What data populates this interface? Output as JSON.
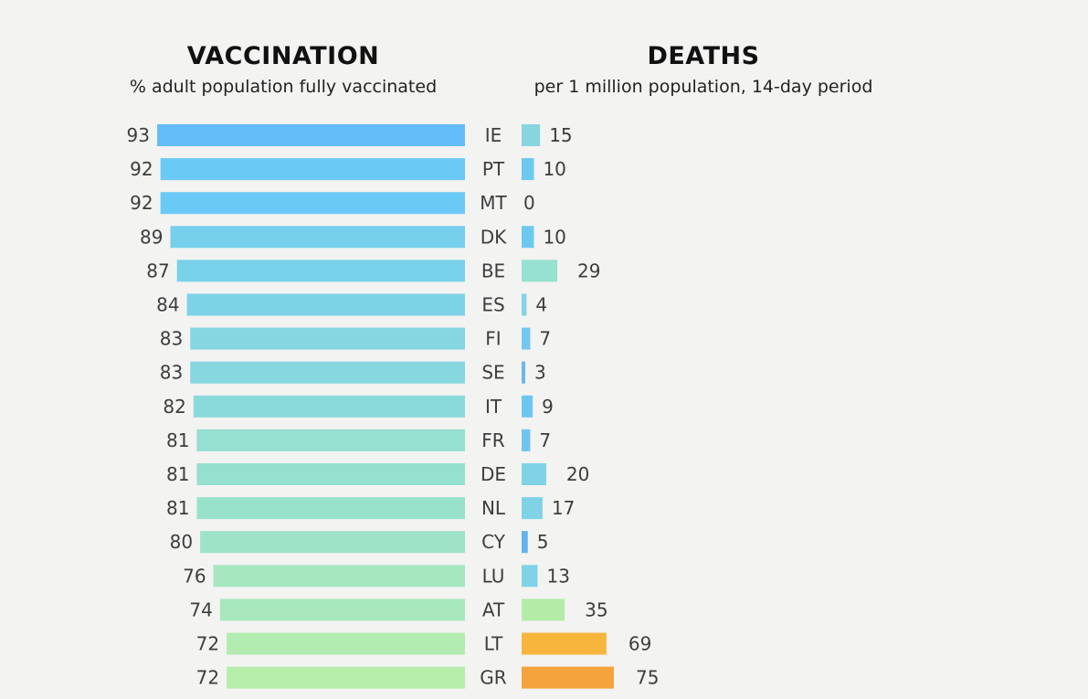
{
  "chart_data": [
    {
      "type": "bar",
      "orientation": "horizontal",
      "title": "VACCINATION",
      "subtitle": "% adult population fully vaccinated",
      "categories": [
        "IE",
        "PT",
        "MT",
        "DK",
        "BE",
        "ES",
        "FI",
        "SE",
        "IT",
        "FR",
        "DE",
        "NL",
        "CY",
        "LU",
        "AT",
        "LT",
        "GR"
      ],
      "values": [
        93,
        92,
        92,
        89,
        87,
        84,
        83,
        83,
        82,
        81,
        81,
        81,
        80,
        76,
        74,
        72,
        72
      ],
      "colors": [
        "#64bdf8",
        "#6bc9f5",
        "#6bc9f5",
        "#76cfeb",
        "#78d2ea",
        "#7dd3e6",
        "#85d6e0",
        "#86d7df",
        "#8adadb",
        "#95e0d0",
        "#95e0cf",
        "#98e2cc",
        "#9de3c8",
        "#a6e7c0",
        "#a8e8bc",
        "#b3ecb0",
        "#b6eeac"
      ],
      "xlim": [
        0,
        93
      ],
      "direction": "right-to-left"
    },
    {
      "type": "bar",
      "orientation": "horizontal",
      "title": "DEATHS",
      "subtitle": "per 1 million population, 14-day period",
      "categories": [
        "IE",
        "PT",
        "MT",
        "DK",
        "BE",
        "ES",
        "FI",
        "SE",
        "IT",
        "FR",
        "DE",
        "NL",
        "CY",
        "LU",
        "AT",
        "LT",
        "GR"
      ],
      "values": [
        15,
        10,
        0,
        10,
        29,
        4,
        7,
        3,
        9,
        7,
        20,
        17,
        5,
        13,
        35,
        69,
        75
      ],
      "colors": [
        "#88d5de",
        "#6cc9ee",
        "#6cc9ee",
        "#6cc9ee",
        "#96e1cf",
        "#85d3e3",
        "#72c8ee",
        "#6ab9e8",
        "#6cc7f0",
        "#6fc4ef",
        "#80d3e6",
        "#80d3e6",
        "#62b3ef",
        "#80d2e6",
        "#b4eca7",
        "#f7b53e",
        "#f5a33c"
      ],
      "xlim": [
        0,
        75
      ],
      "direction": "left-to-right"
    }
  ]
}
